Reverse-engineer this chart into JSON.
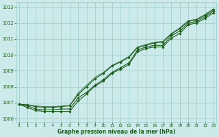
{
  "xlabel": "Graphe pression niveau de la mer (hPa)",
  "ylim": [
    1005.8,
    1013.3
  ],
  "xlim": [
    -0.3,
    23.3
  ],
  "yticks": [
    1006,
    1007,
    1008,
    1009,
    1010,
    1011,
    1012,
    1013
  ],
  "xticks": [
    0,
    1,
    2,
    3,
    4,
    5,
    6,
    7,
    8,
    9,
    10,
    11,
    12,
    13,
    14,
    15,
    16,
    17,
    18,
    19,
    20,
    21,
    22,
    23
  ],
  "background_color": "#cdeaea",
  "grid_color": "#9dc8c8",
  "line_color": "#1a5c1a",
  "marker_color": "#1a5c1a",
  "text_color": "#1a5c1a",
  "series_top": [
    1006.9,
    1006.85,
    1006.75,
    1006.7,
    1006.7,
    1006.75,
    1006.8,
    1007.5,
    1008.0,
    1008.5,
    1008.85,
    1009.3,
    1009.55,
    1009.85,
    1010.45,
    1010.6,
    1010.75,
    1010.8,
    1011.3,
    1011.65,
    1012.1,
    1012.2,
    1012.5,
    1012.85
  ],
  "series_mid": [
    1006.9,
    1006.8,
    1006.6,
    1006.55,
    1006.55,
    1006.6,
    1006.6,
    1007.3,
    1007.65,
    1008.1,
    1008.45,
    1008.9,
    1009.2,
    1009.5,
    1010.3,
    1010.5,
    1010.6,
    1010.6,
    1011.2,
    1011.5,
    1012.0,
    1012.1,
    1012.4,
    1012.75
  ],
  "series_low": [
    1006.9,
    1006.7,
    1006.5,
    1006.45,
    1006.45,
    1006.45,
    1006.45,
    1007.1,
    1007.55,
    1008.05,
    1008.35,
    1008.85,
    1009.1,
    1009.4,
    1010.2,
    1010.4,
    1010.5,
    1010.5,
    1011.05,
    1011.35,
    1011.9,
    1012.0,
    1012.3,
    1012.65
  ]
}
